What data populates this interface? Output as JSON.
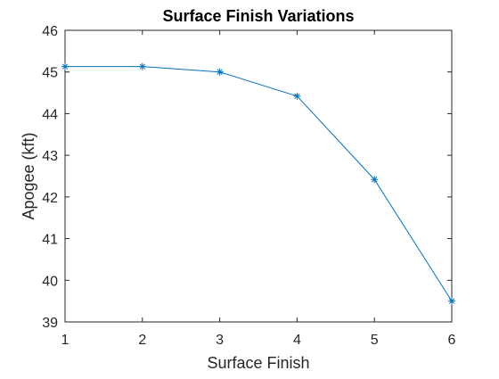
{
  "chart_data": {
    "type": "line",
    "title": "Surface Finish Variations",
    "xlabel": "Surface Finish",
    "ylabel": "Apogee (kft)",
    "x": [
      1,
      2,
      3,
      4,
      5,
      6
    ],
    "xticks": [
      "1",
      "2",
      "3",
      "4",
      "5",
      "6"
    ],
    "yticks": [
      "39",
      "40",
      "41",
      "42",
      "43",
      "44",
      "45",
      "46"
    ],
    "xlim": [
      1,
      6
    ],
    "ylim": [
      39,
      46
    ],
    "grid": false,
    "series": [
      {
        "values": [
          45.13,
          45.13,
          45.0,
          44.42,
          42.42,
          39.5
        ],
        "marker": "asterisk",
        "color": "#0072BD"
      }
    ],
    "axis_color": "#262626"
  }
}
